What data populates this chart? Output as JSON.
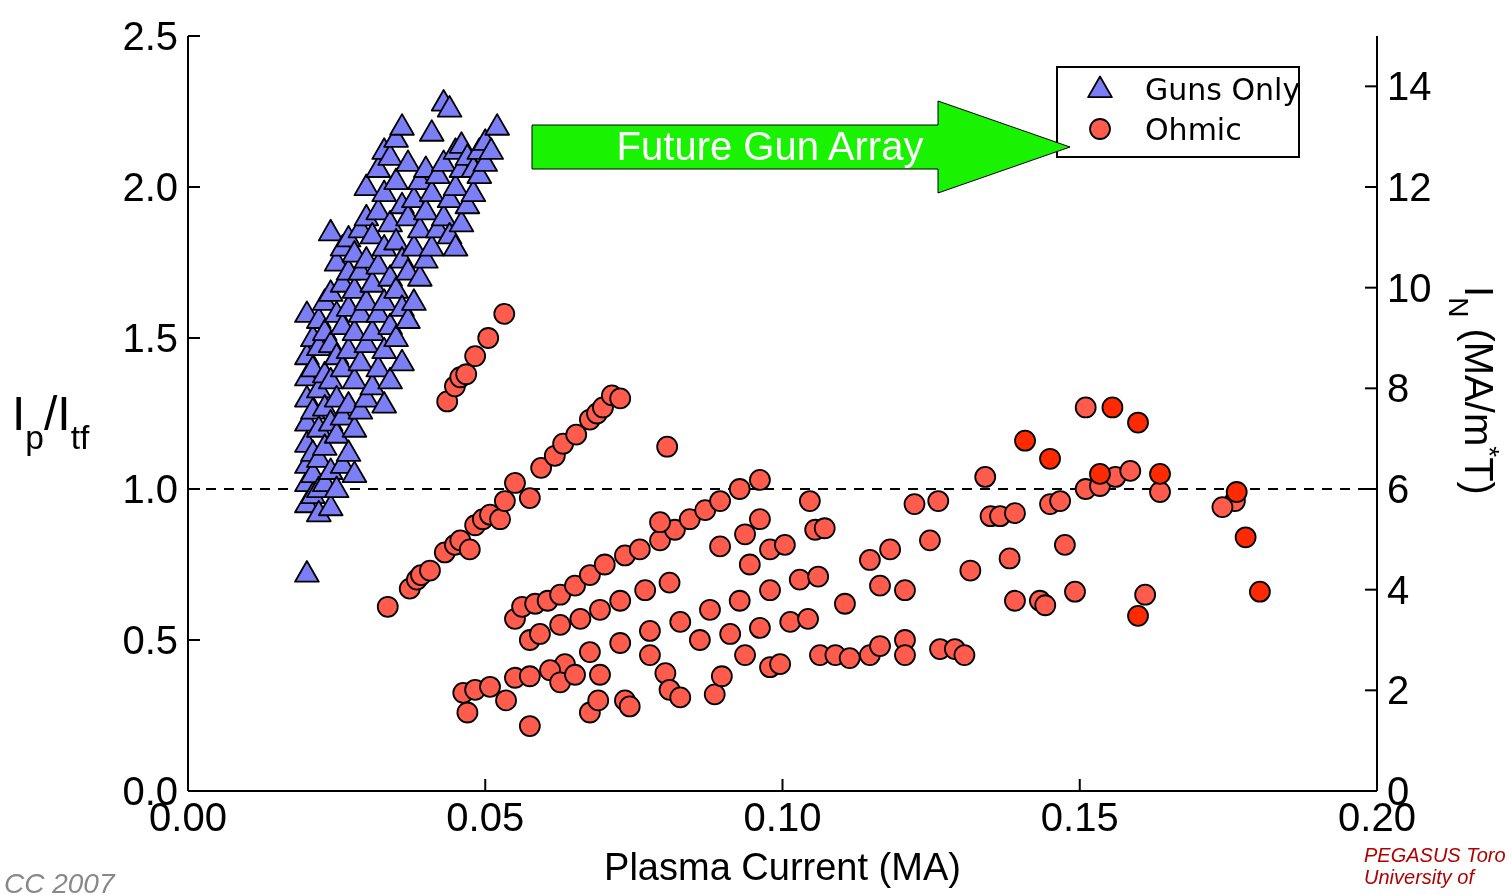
{
  "chart_data": {
    "type": "scatter",
    "xlabel": "Plasma Current (MA)",
    "ylabel": "I$_{p}$/I$_{tf}$",
    "y2label": "I$_{N}$ (MA/m$^{*}$T)",
    "xlim": [
      0,
      0.2
    ],
    "xticks": [
      {
        "value": 0,
        "label": "0.00"
      },
      {
        "value": 0.05,
        "label": "0.05"
      },
      {
        "value": 0.1,
        "label": "0.10"
      },
      {
        "value": 0.15,
        "label": "0.15"
      },
      {
        "value": 0.2,
        "label": "0.20"
      }
    ],
    "ylim": [
      0,
      2.5
    ],
    "yticks": [
      {
        "value": 0,
        "label": "0.0"
      },
      {
        "value": 0.5,
        "label": "0.5"
      },
      {
        "value": 1,
        "label": "1.0"
      },
      {
        "value": 1.5,
        "label": "1.5"
      },
      {
        "value": 2,
        "label": "2.0"
      },
      {
        "value": 2.5,
        "label": "2.5"
      }
    ],
    "y2lim": [
      0,
      15
    ],
    "y2ticks": [
      0,
      2,
      4,
      6,
      8,
      10,
      12,
      14
    ],
    "legend": "top right",
    "grid": false,
    "ref_lines": [
      {
        "axis": "y",
        "value": 1,
        "line_style": "dashed",
        "color": "#000000"
      }
    ],
    "annotations": [
      "Future Gun Array",
      "CC 2007",
      "PEGASUS Toro",
      "University of"
    ],
    "series": [
      {
        "name": "Guns Only",
        "marker": "triangle",
        "color": "#7b7ef5",
        "x": [
          0.02,
          0.02,
          0.02,
          0.02,
          0.02,
          0.02,
          0.02,
          0.02,
          0.02,
          0.02,
          0.021,
          0.021,
          0.021,
          0.021,
          0.021,
          0.021,
          0.022,
          0.022,
          0.022,
          0.022,
          0.022,
          0.022,
          0.022,
          0.023,
          0.023,
          0.023,
          0.023,
          0.023,
          0.023,
          0.024,
          0.024,
          0.024,
          0.024,
          0.024,
          0.024,
          0.024,
          0.025,
          0.025,
          0.025,
          0.025,
          0.025,
          0.025,
          0.026,
          0.026,
          0.026,
          0.026,
          0.026,
          0.026,
          0.027,
          0.027,
          0.027,
          0.027,
          0.027,
          0.027,
          0.028,
          0.028,
          0.028,
          0.028,
          0.028,
          0.028,
          0.029,
          0.029,
          0.029,
          0.029,
          0.029,
          0.03,
          0.03,
          0.03,
          0.03,
          0.03,
          0.03,
          0.031,
          0.031,
          0.031,
          0.031,
          0.032,
          0.032,
          0.032,
          0.032,
          0.032,
          0.033,
          0.033,
          0.033,
          0.033,
          0.033,
          0.033,
          0.034,
          0.034,
          0.034,
          0.034,
          0.034,
          0.035,
          0.035,
          0.035,
          0.035,
          0.035,
          0.036,
          0.036,
          0.036,
          0.036,
          0.036,
          0.037,
          0.037,
          0.037,
          0.037,
          0.038,
          0.038,
          0.038,
          0.039,
          0.039,
          0.039,
          0.04,
          0.04,
          0.04,
          0.041,
          0.041,
          0.041,
          0.042,
          0.042,
          0.043,
          0.043,
          0.043,
          0.044,
          0.044,
          0.044,
          0.045,
          0.045,
          0.045,
          0.046,
          0.046,
          0.046,
          0.047,
          0.047,
          0.048,
          0.048,
          0.049,
          0.049,
          0.05,
          0.05,
          0.051,
          0.052
        ],
        "values": [
          0.72,
          0.95,
          1.02,
          1.08,
          1.15,
          1.22,
          1.3,
          1.37,
          1.44,
          1.58,
          0.98,
          1.05,
          1.12,
          1.26,
          1.4,
          1.5,
          0.92,
          1.0,
          1.1,
          1.2,
          1.33,
          1.47,
          1.56,
          1.02,
          1.14,
          1.27,
          1.38,
          1.52,
          1.62,
          0.94,
          1.06,
          1.22,
          1.36,
          1.48,
          1.65,
          1.85,
          1.0,
          1.18,
          1.3,
          1.44,
          1.58,
          1.75,
          1.08,
          1.24,
          1.4,
          1.54,
          1.68,
          1.8,
          1.12,
          1.28,
          1.46,
          1.6,
          1.72,
          1.83,
          1.05,
          1.2,
          1.36,
          1.52,
          1.66,
          1.78,
          1.26,
          1.42,
          1.58,
          1.72,
          1.86,
          1.3,
          1.48,
          1.62,
          1.76,
          1.9,
          2.0,
          1.34,
          1.52,
          1.68,
          1.84,
          1.4,
          1.58,
          1.74,
          1.92,
          2.06,
          1.28,
          1.46,
          1.62,
          1.8,
          1.98,
          2.12,
          1.36,
          1.54,
          1.7,
          1.88,
          2.1,
          1.5,
          1.66,
          1.82,
          2.02,
          2.16,
          1.42,
          1.6,
          1.76,
          1.94,
          2.2,
          1.56,
          1.72,
          1.9,
          2.08,
          1.62,
          1.8,
          1.96,
          1.7,
          1.86,
          2.02,
          1.76,
          1.92,
          2.06,
          1.8,
          1.98,
          2.18,
          1.86,
          2.04,
          1.9,
          2.08,
          2.28,
          1.84,
          1.96,
          2.26,
          1.8,
          2.0,
          2.12,
          1.88,
          2.06,
          2.14,
          1.94,
          2.1,
          1.98,
          2.06,
          2.04,
          2.12,
          2.08,
          2.15,
          2.12,
          2.2
        ]
      },
      {
        "name": "Ohmic",
        "marker": "circle",
        "color": "#ff5c4d",
        "x": [
          0.0436,
          0.0449,
          0.0458,
          0.0468,
          0.0483,
          0.0505,
          0.0532,
          0.0336,
          0.0373,
          0.0385,
          0.0392,
          0.0407,
          0.0432,
          0.0449,
          0.0458,
          0.0474,
          0.0483,
          0.0496,
          0.0508,
          0.0525,
          0.0533,
          0.055,
          0.0575,
          0.0594,
          0.0617,
          0.0631,
          0.0653,
          0.0676,
          0.0688,
          0.0698,
          0.0713,
          0.0727,
          0.0806,
          0.055,
          0.0562,
          0.0584,
          0.0605,
          0.0626,
          0.0651,
          0.0676,
          0.0701,
          0.0735,
          0.076,
          0.0794,
          0.0819,
          0.0844,
          0.087,
          0.0895,
          0.0928,
          0.0962,
          0.0794,
          0.0575,
          0.0592,
          0.0626,
          0.066,
          0.0693,
          0.0727,
          0.0769,
          0.081,
          0.0634,
          0.0676,
          0.0727,
          0.0777,
          0.0828,
          0.0878,
          0.0928,
          0.0979,
          0.1029,
          0.106,
          0.0861,
          0.0912,
          0.0962,
          0.1013,
          0.1043,
          0.0463,
          0.047,
          0.0483,
          0.0508,
          0.0535,
          0.0575,
          0.055,
          0.0575,
          0.0609,
          0.0626,
          0.0651,
          0.0676,
          0.0693,
          0.069,
          0.0735,
          0.0743,
          0.0777,
          0.0803,
          0.081,
          0.0828,
          0.0886,
          0.0898,
          0.0937,
          0.0979,
          0.0996,
          0.1063,
          0.1089,
          0.1113,
          0.1147,
          0.1164,
          0.1206,
          0.1206,
          0.1265,
          0.129,
          0.1306,
          0.0895,
          0.0937,
          0.0962,
          0.0945,
          0.0979,
          0.1004,
          0.1046,
          0.1055,
          0.1071,
          0.1105,
          0.1147,
          0.1181,
          0.1164,
          0.1206,
          0.1222,
          0.1248,
          0.1262,
          0.1316,
          0.1341,
          0.135,
          0.1366,
          0.1382,
          0.1391,
          0.1391,
          0.1433,
          0.1442,
          0.145,
          0.1467,
          0.1475,
          0.1492,
          0.151,
          0.1534,
          0.156,
          0.1585,
          0.161,
          0.1635,
          0.1761,
          0.174,
          0.151,
          0.1408,
          0.145,
          0.1555,
          0.1598,
          0.1534,
          0.1635,
          0.1764,
          0.1779,
          0.1803,
          0.1598
        ],
        "values": [
          1.29,
          1.34,
          1.37,
          1.38,
          1.44,
          1.5,
          1.58,
          0.61,
          0.67,
          0.7,
          0.715,
          0.73,
          0.79,
          0.815,
          0.83,
          0.8,
          0.88,
          0.9,
          0.915,
          0.9,
          0.96,
          1.02,
          0.97,
          1.07,
          1.11,
          1.15,
          1.18,
          1.23,
          1.25,
          1.27,
          1.31,
          1.3,
          1.14,
          0.57,
          0.61,
          0.62,
          0.63,
          0.65,
          0.68,
          0.715,
          0.75,
          0.78,
          0.8,
          0.83,
          0.865,
          0.9,
          0.93,
          0.96,
          1.0,
          1.03,
          0.89,
          0.5,
          0.52,
          0.55,
          0.57,
          0.6,
          0.63,
          0.665,
          0.69,
          0.42,
          0.46,
          0.49,
          0.53,
          0.56,
          0.6,
          0.63,
          0.665,
          0.7,
          0.71,
          0.5,
          0.52,
          0.54,
          0.56,
          0.57,
          0.325,
          0.26,
          0.335,
          0.345,
          0.3,
          0.215,
          0.375,
          0.38,
          0.4,
          0.36,
          0.385,
          0.26,
          0.385,
          0.3,
          0.3,
          0.28,
          0.45,
          0.39,
          0.335,
          0.31,
          0.32,
          0.38,
          0.45,
          0.41,
          0.42,
          0.45,
          0.45,
          0.44,
          0.45,
          0.48,
          0.5,
          0.45,
          0.47,
          0.47,
          0.45,
          0.81,
          0.85,
          0.9,
          0.75,
          0.8,
          0.815,
          0.96,
          0.865,
          0.87,
          0.62,
          0.765,
          0.8,
          0.68,
          0.665,
          0.95,
          0.83,
          0.96,
          0.73,
          1.04,
          0.91,
          0.91,
          0.77,
          0.92,
          0.63,
          0.63,
          0.615,
          0.95,
          0.96,
          0.815,
          0.66,
          1.0,
          1.01,
          1.04,
          1.06,
          0.65,
          0.99,
          0.96,
          0.94,
          1.27,
          1.16,
          1.1,
          1.27,
          1.22,
          1.05,
          1.05,
          0.99,
          0.84,
          0.66,
          0.58
        ],
        "colors": [
          "#ff5c4d",
          "#ff5c4d",
          "#ff5c4d",
          "#ff5c4d",
          "#ff5c4d",
          "#ff5c4d",
          "#ff5c4d",
          "#ff5c4d",
          "#ff5c4d",
          "#ff5c4d",
          "#ff5c4d",
          "#ff5c4d",
          "#ff5c4d",
          "#ff5c4d",
          "#ff5c4d",
          "#ff5c4d",
          "#ff5c4d",
          "#ff5c4d",
          "#ff5c4d",
          "#ff5c4d",
          "#ff5c4d",
          "#ff5c4d",
          "#ff5c4d",
          "#ff5c4d",
          "#ff5c4d",
          "#ff5c4d",
          "#ff5c4d",
          "#ff5c4d",
          "#ff5c4d",
          "#ff5c4d",
          "#ff5c4d",
          "#ff5c4d",
          "#ff5c4d",
          "#ff5c4d",
          "#ff5c4d",
          "#ff5c4d",
          "#ff5c4d",
          "#ff5c4d",
          "#ff5c4d",
          "#ff5c4d",
          "#ff5c4d",
          "#ff5c4d",
          "#ff5c4d",
          "#ff5c4d",
          "#ff5c4d",
          "#ff5c4d",
          "#ff5c4d",
          "#ff5c4d",
          "#ff5c4d",
          "#ff5c4d",
          "#ff5c4d",
          "#ff5c4d",
          "#ff5c4d",
          "#ff5c4d",
          "#ff5c4d",
          "#ff5c4d",
          "#ff5c4d",
          "#ff5c4d",
          "#ff5c4d",
          "#ff5c4d",
          "#ff5c4d",
          "#ff5c4d",
          "#ff5c4d",
          "#ff5c4d",
          "#ff5c4d",
          "#ff5c4d",
          "#ff5c4d",
          "#ff5c4d",
          "#ff5c4d",
          "#ff5c4d",
          "#ff5c4d",
          "#ff5c4d",
          "#ff5c4d",
          "#ff5c4d",
          "#ff5c4d",
          "#ff5c4d",
          "#ff5c4d",
          "#ff5c4d",
          "#ff5c4d",
          "#ff5c4d",
          "#ff5c4d",
          "#ff5c4d",
          "#ff5c4d",
          "#ff5c4d",
          "#ff5c4d",
          "#ff5c4d",
          "#ff5c4d",
          "#ff5c4d",
          "#ff5c4d",
          "#ff5c4d",
          "#ff5c4d",
          "#ff5c4d",
          "#ff5c4d",
          "#ff5c4d",
          "#ff5c4d",
          "#ff5c4d",
          "#ff5c4d",
          "#ff5c4d",
          "#ff5c4d",
          "#ff5c4d",
          "#ff5c4d",
          "#ff5c4d",
          "#ff5c4d",
          "#ff5c4d",
          "#ff5c4d",
          "#ff5c4d",
          "#ff5c4d",
          "#ff5c4d",
          "#ff5c4d",
          "#ff5c4d",
          "#ff5c4d",
          "#ff5c4d",
          "#ff5c4d",
          "#ff5c4d",
          "#ff5c4d",
          "#ff5c4d",
          "#ff5c4d",
          "#ff5c4d",
          "#ff5c4d",
          "#ff5c4d",
          "#ff5c4d",
          "#ff5c4d",
          "#ff5c4d",
          "#ff5c4d",
          "#ff5c4d",
          "#ff5c4d",
          "#ff5c4d",
          "#ff5c4d",
          "#ff5c4d",
          "#ff5c4d",
          "#ff5c4d",
          "#ff5c4d",
          "#ff5c4d",
          "#ff5c4d",
          "#ff5c4d",
          "#ff5c4d",
          "#ff5c4d",
          "#ff5c4d",
          "#ff5c4d",
          "#ff5c4d",
          "#ff5c4d",
          "#ff5c4d",
          "#ff5c4d",
          "#ff5c4d",
          "#ff5c4d",
          "#ff5c4d",
          "#ff5c4d",
          "#ff5c4d",
          "#ff2a00",
          "#ff2a00",
          "#ff2a00",
          "#ff2a00",
          "#ff2a00",
          "#ff2a00",
          "#ff2a00",
          "#ff2a00",
          "#ff2a00",
          "#ff2a00"
        ]
      }
    ]
  }
}
